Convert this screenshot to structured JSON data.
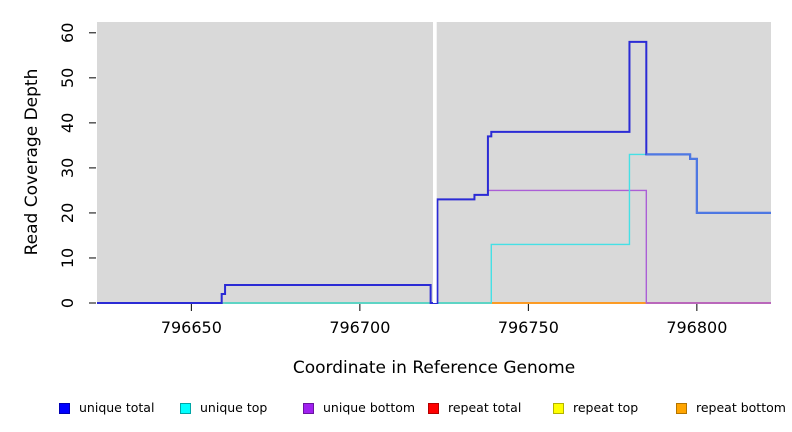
{
  "chart_data": {
    "type": "line",
    "subtype": "step-coverage-plot",
    "title": "",
    "xlabel": "Coordinate in Reference Genome",
    "ylabel": "Read Coverage Depth",
    "xlim": [
      796622,
      796822
    ],
    "ylim": [
      0,
      62.4
    ],
    "xticks": [
      796650,
      796700,
      796750,
      796800
    ],
    "yticks": [
      0,
      10,
      20,
      30,
      40,
      50,
      60
    ],
    "grid": false,
    "panel_background": "#d9d9d9",
    "gap_x": [
      796721.7,
      796722.8
    ],
    "series": [
      {
        "name": "unique total",
        "color": "#2b2bd5",
        "width": 2,
        "steps": [
          [
            796622,
            0
          ],
          [
            796659,
            2
          ],
          [
            796660,
            4
          ],
          [
            796721,
            0
          ],
          [
            796723,
            23
          ],
          [
            796734,
            24
          ],
          [
            796738,
            37
          ],
          [
            796739,
            38
          ],
          [
            796780,
            58
          ],
          [
            796785,
            33
          ],
          [
            796798,
            32
          ],
          [
            796800,
            20
          ]
        ],
        "end": 796822
      },
      {
        "name": "unique top",
        "color": "#45e0e5",
        "width": 1.4,
        "steps": [
          [
            796622,
            0
          ],
          [
            796739,
            13
          ],
          [
            796780,
            33
          ],
          [
            796798,
            32
          ],
          [
            796800,
            20
          ]
        ],
        "end": 796822
      },
      {
        "name": "unique bottom",
        "color": "#ab5fd6",
        "width": 1.4,
        "steps": [
          [
            796622,
            0
          ],
          [
            796659,
            2
          ],
          [
            796660,
            4
          ],
          [
            796721,
            0
          ],
          [
            796723,
            23
          ],
          [
            796734,
            24
          ],
          [
            796738,
            25
          ],
          [
            796785,
            0
          ]
        ],
        "end": 796822
      },
      {
        "name": "repeat total",
        "color": "#d9617f",
        "width": 1.4,
        "steps": [
          [
            796622,
            0
          ]
        ],
        "end": 796822
      },
      {
        "name": "repeat top",
        "color": "#e8e84a",
        "width": 1.2,
        "steps": [
          [
            796622,
            0
          ]
        ],
        "end": 796822
      },
      {
        "name": "repeat bottom",
        "color": "#ff9815",
        "width": 1.5,
        "steps": [
          [
            796622,
            0
          ]
        ],
        "end": 796822
      }
    ],
    "baseline_visual_segments": [
      {
        "x1": 796660,
        "x2": 796739,
        "value": 0,
        "color": "#67b96e"
      },
      {
        "x1": 796739,
        "x2": 796785,
        "value": 0,
        "color": "#ff9815"
      },
      {
        "x1": 796785,
        "x2": 796822,
        "value": 0,
        "color": "#d9617f"
      }
    ],
    "overlap_series": {
      "note": "unique top equals unique total here; lines blend",
      "color": "#4d7ae3",
      "width": 2,
      "steps": [
        [
          796785,
          33
        ],
        [
          796798,
          32
        ],
        [
          796800,
          20
        ]
      ],
      "end": 796822
    }
  },
  "legend": {
    "items": [
      {
        "label": "unique total",
        "color": "#0000ff",
        "border": "#0000b3"
      },
      {
        "label": "unique top",
        "color": "#00ffff",
        "border": "#00a6a6"
      },
      {
        "label": "unique bottom",
        "color": "#a020f0",
        "border": "#6a14a0"
      },
      {
        "label": "repeat total",
        "color": "#ff0000",
        "border": "#b30000"
      },
      {
        "label": "repeat top",
        "color": "#ffff00",
        "border": "#b3b300"
      },
      {
        "label": "repeat bottom",
        "color": "#ffa500",
        "border": "#b37400"
      }
    ]
  }
}
